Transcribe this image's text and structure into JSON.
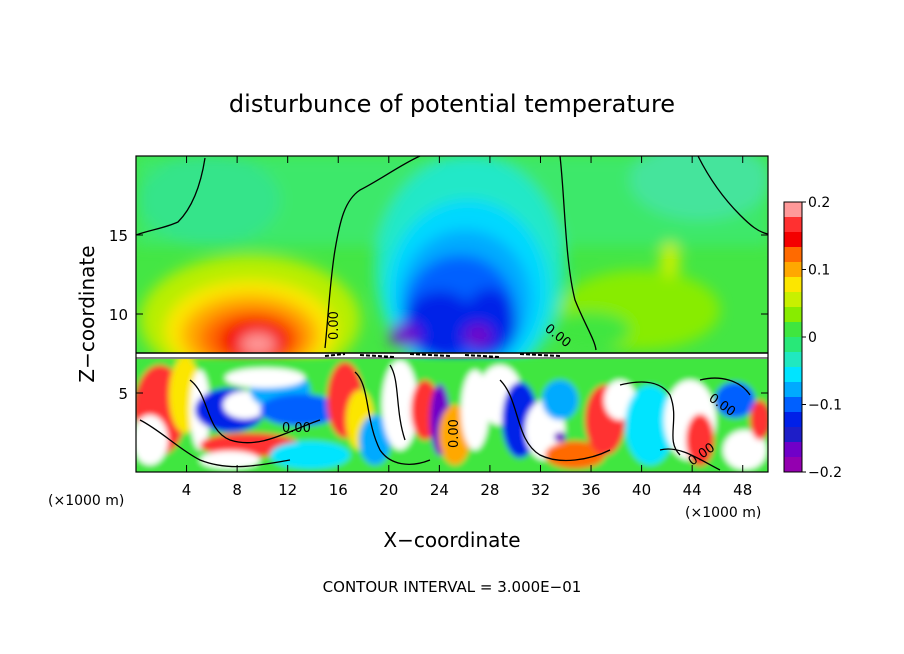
{
  "chart_data": {
    "type": "heatmap",
    "title": "disturbunce of potential temperature",
    "xlabel": "X−coordinate",
    "ylabel": "Z−coordinate",
    "x_unit_left": "(×1000 m)",
    "x_unit_right": "(×1000 m)",
    "xlim": [
      0,
      50
    ],
    "ylim": [
      0,
      20
    ],
    "x_ticks": [
      4,
      8,
      12,
      16,
      20,
      24,
      28,
      32,
      36,
      40,
      44,
      48
    ],
    "y_ticks": [
      5,
      10,
      15
    ],
    "colorbar": {
      "range": [
        -0.2,
        0.2
      ],
      "ticks": [
        0.2,
        0.1,
        0,
        -0.1,
        -0.2
      ],
      "tick_labels": [
        "0.2",
        "0.1",
        "0",
        "−0.1",
        "−0.2"
      ],
      "colors": [
        "#ff9999",
        "#ff3030",
        "#f40000",
        "#ff6a00",
        "#ffa800",
        "#fce600",
        "#c8f000",
        "#88ec00",
        "#3fe63f",
        "#28e878",
        "#20e8c0",
        "#00e4ff",
        "#00aaff",
        "#0060ff",
        "#0020e8",
        "#1e1ec8",
        "#7000c8",
        "#9400b0"
      ]
    },
    "contour_labels": [
      "0.00",
      "0.00",
      "0.00",
      "0.00",
      "0.00",
      "0.00"
    ],
    "footer": "CONTOUR INTERVAL = 3.000E−01"
  }
}
